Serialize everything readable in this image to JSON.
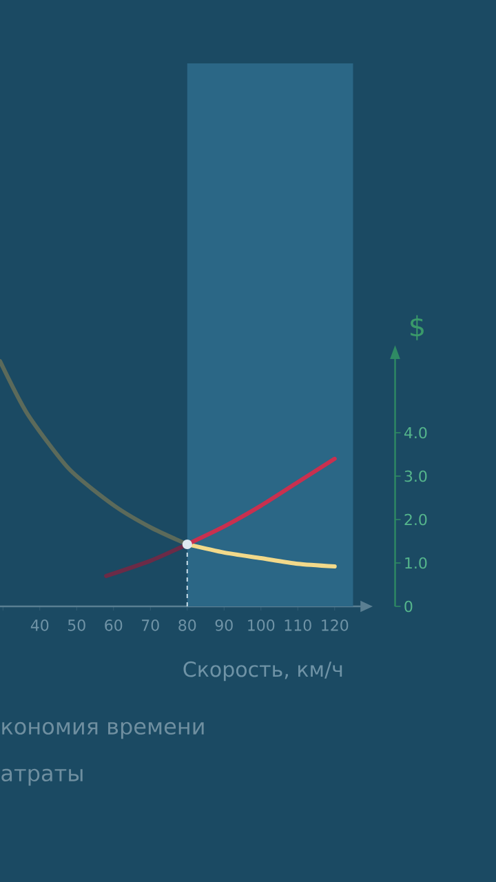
{
  "chart_data": {
    "type": "line",
    "ylabel": "$",
    "xlabel": "Скорость, км/ч",
    "xlim": [
      29.2,
      127
    ],
    "ylim": [
      0,
      5.7
    ],
    "xticks": [
      {
        "value": 30,
        "label": null
      },
      40,
      50,
      60,
      70,
      80,
      90,
      100,
      110,
      {
        "value": 120,
        "label": "120"
      }
    ],
    "yticks": [
      {
        "value": 0,
        "label": "0"
      },
      {
        "value": 1,
        "label": "1.0"
      },
      {
        "value": 2,
        "label": "2.0"
      },
      {
        "value": 3,
        "label": "3.0"
      },
      {
        "value": 4,
        "label": "4.0"
      }
    ],
    "series": [
      {
        "color": "#5c6a5a",
        "x": [
          29.2,
          36.6,
          47.9,
          60.2,
          70.3,
          80
        ],
        "values": [
          5.65,
          4.44,
          3.17,
          2.32,
          1.81,
          1.43
        ]
      },
      {
        "color": "#f2d98a",
        "x": [
          80,
          90,
          100,
          110,
          120
        ],
        "values": [
          1.43,
          1.24,
          1.11,
          0.98,
          0.92
        ]
      },
      {
        "color": "#6b2b47",
        "x": [
          58,
          70,
          80
        ],
        "values": [
          0.7,
          1.05,
          1.43
        ]
      },
      {
        "color": "#c9304f",
        "x": [
          80,
          90,
          100,
          110,
          120
        ],
        "values": [
          1.43,
          1.84,
          2.32,
          2.86,
          3.4
        ]
      }
    ],
    "bands": [
      {
        "axis": "x",
        "from": 80,
        "to": 125,
        "color": "#2b6786"
      }
    ],
    "ref_lines": [
      {
        "axis": "x",
        "value": 80,
        "color": "#c8dde8",
        "line_style": "dashed"
      }
    ],
    "line_style": "solid",
    "annotations": [
      "кономия времени",
      "атраты"
    ]
  }
}
